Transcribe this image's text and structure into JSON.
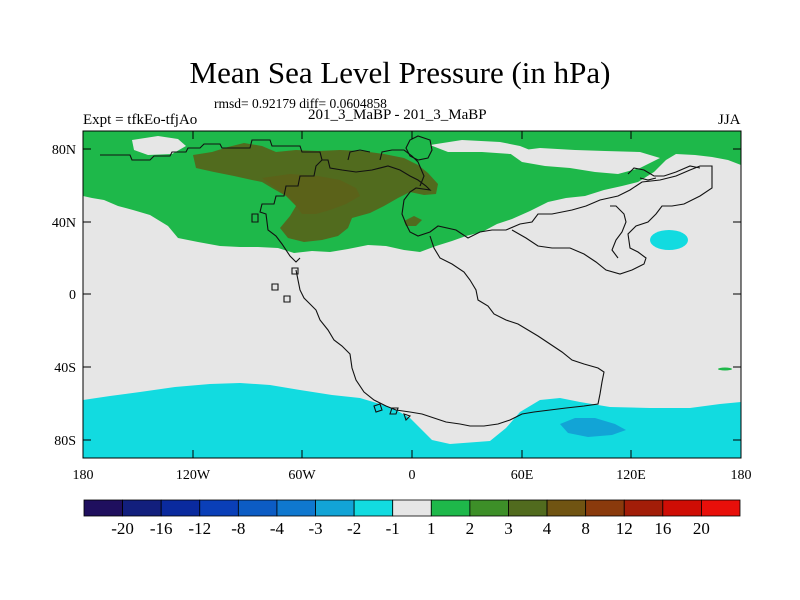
{
  "title": "Mean Sea Level Pressure (in hPa)",
  "stats": "rmsd= 0.92179 diff= 0.0604858",
  "experiment": "Expt = tfkEo-tfjAo",
  "comparison": "201_3_MaBP - 201_3_MaBP",
  "season": "JJA",
  "map": {
    "lon_range": [
      -180,
      180
    ],
    "lat_range": [
      -90,
      90
    ],
    "y_ticks": [
      "80N",
      "40N",
      "0",
      "40S",
      "80S"
    ],
    "x_ticks": [
      "180",
      "120W",
      "60W",
      "0",
      "60E",
      "120E",
      "180"
    ],
    "zero_band_color": "#e6e6e6"
  },
  "colorbar": {
    "levels": [
      "-20",
      "-16",
      "-12",
      "-8",
      "-4",
      "-3",
      "-2",
      "-1",
      "1",
      "2",
      "3",
      "4",
      "8",
      "12",
      "16",
      "20"
    ],
    "colors": [
      "#1f0f5e",
      "#121f7d",
      "#0a2a9e",
      "#0a3fb8",
      "#0c5cc4",
      "#0f78cf",
      "#12a4d6",
      "#12dbe0",
      "#e6e6e6",
      "#1eb84a",
      "#3d8f28",
      "#516b1e",
      "#705412",
      "#8a3a0c",
      "#a21d08",
      "#cf0d05",
      "#e80f0a"
    ]
  }
}
